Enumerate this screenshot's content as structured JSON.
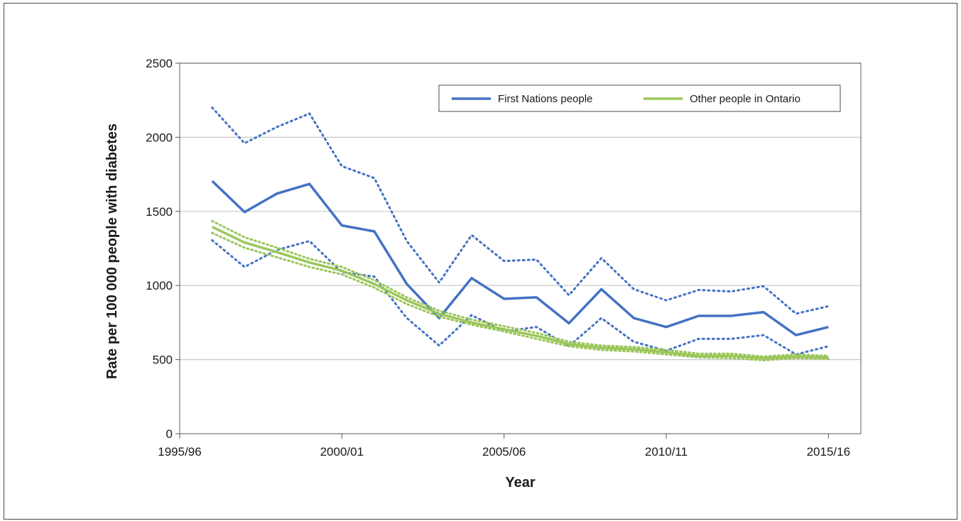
{
  "chart_data": {
    "type": "line",
    "xlabel": "Year",
    "ylabel": "Rate per 100 000 people with diabetes",
    "ylim": [
      0,
      2500
    ],
    "yticks": [
      0,
      500,
      1000,
      1500,
      2000,
      2500
    ],
    "x_tick_labels": [
      "1995/96",
      "2000/01",
      "2005/06",
      "2010/11",
      "2015/16"
    ],
    "x": [
      "1996/97",
      "1997/98",
      "1998/99",
      "1999/00",
      "2000/01",
      "2001/02",
      "2002/03",
      "2003/04",
      "2004/05",
      "2005/06",
      "2006/07",
      "2007/08",
      "2008/09",
      "2009/10",
      "2010/11",
      "2011/12",
      "2012/13",
      "2013/14",
      "2014/15",
      "2015/16"
    ],
    "grid": "horizontal",
    "legend_position": "top-right",
    "series": [
      {
        "name": "First Nations people",
        "color": "#4472c4",
        "values": [
          1705,
          1495,
          1620,
          1685,
          1405,
          1365,
          1010,
          780,
          1050,
          910,
          920,
          745,
          975,
          780,
          720,
          795,
          795,
          820,
          665,
          720
        ],
        "lower": [
          1305,
          1125,
          1240,
          1300,
          1090,
          1060,
          780,
          595,
          800,
          690,
          720,
          590,
          780,
          620,
          560,
          640,
          640,
          665,
          535,
          590
        ],
        "upper": [
          2200,
          1960,
          2070,
          2160,
          1805,
          1725,
          1300,
          1020,
          1340,
          1165,
          1175,
          935,
          1185,
          975,
          900,
          970,
          960,
          995,
          810,
          860
        ]
      },
      {
        "name": "Other people in Ontario",
        "color": "#9bc65a",
        "values": [
          1395,
          1290,
          1225,
          1155,
          1100,
          1010,
          900,
          810,
          750,
          705,
          660,
          605,
          580,
          570,
          550,
          525,
          525,
          510,
          520,
          515
        ],
        "lower": [
          1355,
          1255,
          1190,
          1125,
          1075,
          985,
          875,
          790,
          735,
          690,
          640,
          590,
          565,
          555,
          535,
          515,
          510,
          495,
          510,
          505
        ],
        "upper": [
          1435,
          1325,
          1255,
          1180,
          1125,
          1035,
          920,
          830,
          770,
          725,
          680,
          620,
          595,
          585,
          565,
          540,
          540,
          520,
          535,
          525
        ]
      }
    ]
  }
}
